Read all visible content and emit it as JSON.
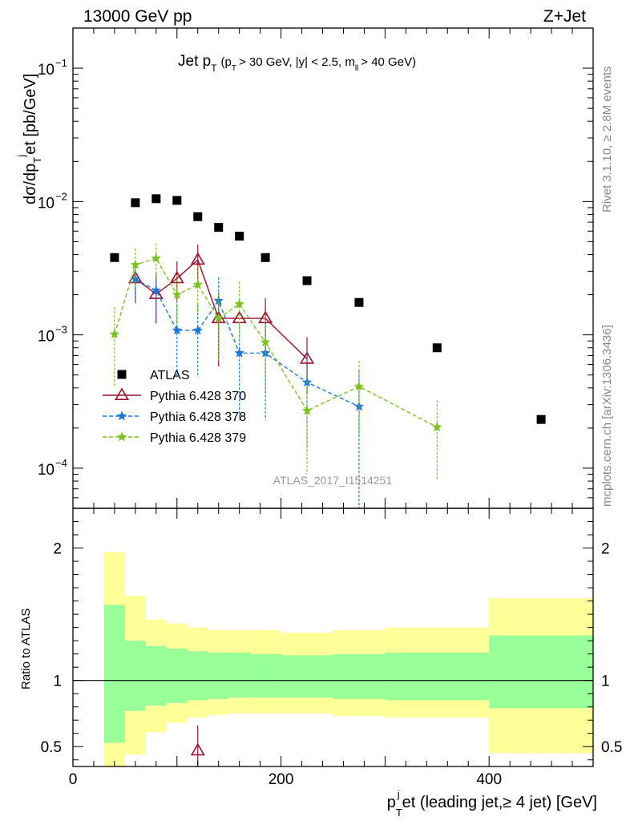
{
  "header": {
    "left": "13000 GeV pp",
    "right": "Z+Jet"
  },
  "side_labels": {
    "rivet": "Rivet 3.1.10, ≥ 2.8M events",
    "mcplots": "mcplots.cern.ch [arXiv:1306.3436]"
  },
  "chart_data": [
    {
      "type": "scatter",
      "title": "Jet p_T (p_T > 30 GeV, |y| < 2.5, m_ll > 40 GeV)",
      "title_main": "Jet p",
      "title_detail": "(p",
      "title_detail_2": "> 30 GeV, |y| < 2.5, m",
      "title_detail_3": "> 40 GeV)",
      "ylabel": "dσ/dp_T^jet [pb/GeV]",
      "yscale": "log",
      "ylim": [
        5e-05,
        0.2
      ],
      "xlim": [
        0,
        500
      ],
      "y_ticks": [
        {
          "v": 0.0001,
          "base": "10",
          "exp": "−4"
        },
        {
          "v": 0.001,
          "base": "10",
          "exp": "−3"
        },
        {
          "v": 0.01,
          "base": "10",
          "exp": "−2"
        },
        {
          "v": 0.1,
          "base": "10",
          "exp": "−1"
        }
      ],
      "watermark": "ATLAS_2017_I1514251",
      "legend_position": "left-middle",
      "series": [
        {
          "name": "ATLAS",
          "color": "#000000",
          "marker": "square",
          "x": [
            40,
            60,
            80,
            100,
            120,
            140,
            160,
            185,
            225,
            275,
            350,
            450
          ],
          "y": [
            0.0038,
            0.0098,
            0.0105,
            0.0102,
            0.0077,
            0.0064,
            0.0055,
            0.0038,
            0.00255,
            0.00175,
            0.0008,
            0.000232
          ]
        },
        {
          "name": "Pythia 6.428 370",
          "color": "#a01030",
          "marker": "triangle",
          "line": "solid",
          "x": [
            60,
            80,
            100,
            120,
            140,
            160,
            185,
            225
          ],
          "y": [
            0.00265,
            0.00202,
            0.00265,
            0.00365,
            0.00133,
            0.00133,
            0.00133,
            0.00066
          ],
          "err": [
            0.0009,
            0.0008,
            0.0009,
            0.0011,
            0.00075,
            0.0,
            0.00055,
            0.0003
          ]
        },
        {
          "name": "Pythia 6.428 378",
          "color": "#1a77d8",
          "marker": "star",
          "line": "dashed",
          "x": [
            60,
            80,
            100,
            120,
            140,
            160,
            185,
            225,
            275
          ],
          "y": [
            0.00262,
            0.00215,
            0.00108,
            0.00108,
            0.0018,
            0.00073,
            0.00073,
            0.00044,
            0.00029
          ],
          "err": [
            0.0009,
            0.0008,
            0.0006,
            0.0006,
            0.0009,
            0.0005,
            0.0005,
            0.0003,
            0.00025
          ]
        },
        {
          "name": "Pythia 6.428 379",
          "color": "#7cc221",
          "marker": "star",
          "line": "dashed",
          "x": [
            40,
            60,
            80,
            100,
            120,
            140,
            160,
            185,
            225,
            275,
            350
          ],
          "y": [
            0.00101,
            0.00335,
            0.00375,
            0.002,
            0.00238,
            0.00133,
            0.0017,
            0.00088,
            0.00027,
            0.00041,
            0.000203
          ],
          "err": [
            0.0006,
            0.0011,
            0.0011,
            0.0008,
            0.0009,
            0.0007,
            0.0008,
            0.0005,
            0.00018,
            0.00023,
            0.00012
          ]
        }
      ]
    },
    {
      "type": "area",
      "ylabel": "Ratio to ATLAS",
      "xlabel": "p_T^jet (leading jet,≥ 4 jet) [GeV]",
      "xlabel_main": "p",
      "xlabel_rest": "et (leading jet,≥ 4 jet) [GeV]",
      "xlim": [
        0,
        500
      ],
      "ylim": [
        0.35,
        2.3
      ],
      "x_ticks": [
        0,
        200,
        400
      ],
      "y_ticks": [
        0.5,
        1,
        2
      ],
      "y_tick_labels": [
        "0.5",
        "1",
        "2"
      ],
      "bins": [
        {
          "x0": 30,
          "x1": 50,
          "green": [
            0.53,
            1.57
          ],
          "yellow": [
            0.3,
            1.97
          ]
        },
        {
          "x0": 50,
          "x1": 70,
          "green": [
            0.77,
            1.3
          ],
          "yellow": [
            0.44,
            1.64
          ]
        },
        {
          "x0": 70,
          "x1": 90,
          "green": [
            0.81,
            1.26
          ],
          "yellow": [
            0.61,
            1.46
          ]
        },
        {
          "x0": 90,
          "x1": 110,
          "green": [
            0.83,
            1.24
          ],
          "yellow": [
            0.68,
            1.43
          ]
        },
        {
          "x0": 110,
          "x1": 130,
          "green": [
            0.85,
            1.22
          ],
          "yellow": [
            0.72,
            1.4
          ]
        },
        {
          "x0": 130,
          "x1": 150,
          "green": [
            0.86,
            1.21
          ],
          "yellow": [
            0.74,
            1.38
          ]
        },
        {
          "x0": 150,
          "x1": 170,
          "green": [
            0.87,
            1.21
          ],
          "yellow": [
            0.75,
            1.38
          ]
        },
        {
          "x0": 170,
          "x1": 200,
          "green": [
            0.87,
            1.2
          ],
          "yellow": [
            0.75,
            1.38
          ]
        },
        {
          "x0": 200,
          "x1": 250,
          "green": [
            0.87,
            1.19
          ],
          "yellow": [
            0.75,
            1.36
          ]
        },
        {
          "x0": 250,
          "x1": 300,
          "green": [
            0.86,
            1.2
          ],
          "yellow": [
            0.73,
            1.38
          ]
        },
        {
          "x0": 300,
          "x1": 400,
          "green": [
            0.85,
            1.21
          ],
          "yellow": [
            0.72,
            1.4
          ]
        },
        {
          "x0": 400,
          "x1": 500,
          "green": [
            0.79,
            1.34
          ],
          "yellow": [
            0.45,
            1.62
          ]
        }
      ],
      "ratio_points": [
        {
          "series": "Pythia 6.428 370",
          "x": 120,
          "y": 0.47,
          "err": 0.19
        }
      ]
    }
  ]
}
